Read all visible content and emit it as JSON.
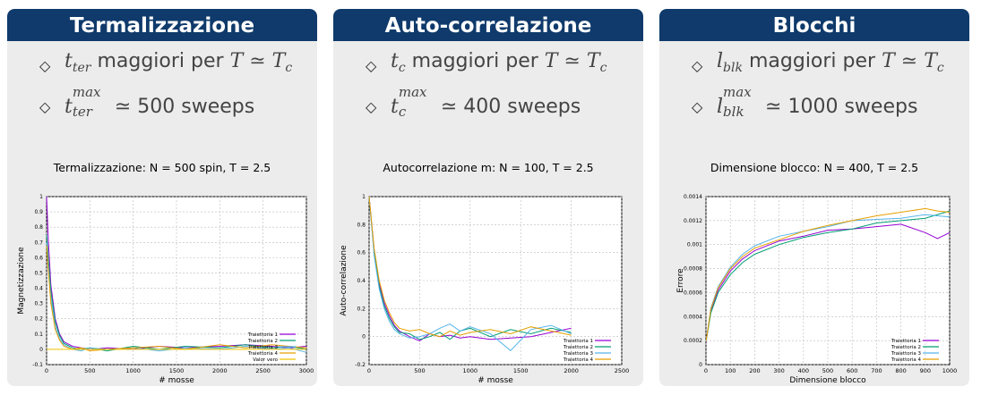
{
  "panels": [
    {
      "title": "Termalizzazione",
      "b1": {
        "sym": "t",
        "sub": "ter",
        "text": " maggiori per ",
        "rel": "T ≃ T",
        "relsub": "c"
      },
      "b2": {
        "sym": "t",
        "sup": "max",
        "sub": "ter",
        "rel": " ≃ ",
        "text": "500 sweeps"
      },
      "chart_data": {
        "type": "line",
        "title": "Termalizzazione: N = 500 spin, T = 2.5",
        "xlabel": "# mosse",
        "ylabel": "Magnetizzazione",
        "xlim": [
          0,
          3000
        ],
        "ylim": [
          -0.1,
          1
        ],
        "xticks": [
          "0",
          "500",
          "1000",
          "1500",
          "2000",
          "2500",
          "3000"
        ],
        "yticks": [
          "-0.1",
          "0",
          "0.1",
          "0.2",
          "0.3",
          "0.4",
          "0.5",
          "0.6",
          "0.7",
          "0.8",
          "0.9",
          "1"
        ],
        "grid": true,
        "legend_position": "bottom-right",
        "series": [
          {
            "name": "Traiettoria 1",
            "color": "#9400d3",
            "x": [
              0,
              20,
              50,
              100,
              150,
              200,
              300,
              400,
              500,
              700,
              1000,
              1300,
              1600,
              2000,
              2300,
              2600,
              2800,
              3000
            ],
            "y": [
              1,
              0.72,
              0.42,
              0.2,
              0.1,
              0.05,
              0.02,
              0.01,
              0.0,
              0.01,
              0.0,
              0.02,
              0.01,
              0.02,
              0.03,
              0.02,
              0.01,
              0.02
            ]
          },
          {
            "name": "Traiettoria 2",
            "color": "#009e73",
            "x": [
              0,
              20,
              50,
              100,
              150,
              200,
              300,
              400,
              500,
              700,
              1000,
              1300,
              1600,
              2000,
              2300,
              2600,
              2800,
              3000
            ],
            "y": [
              0.75,
              0.6,
              0.38,
              0.18,
              0.09,
              0.04,
              0.01,
              0.0,
              0.01,
              -0.01,
              0.02,
              0.0,
              0.02,
              0.01,
              0.03,
              0.01,
              0.02,
              0.0
            ]
          },
          {
            "name": "Traiettoria 3",
            "color": "#56b4e9",
            "x": [
              0,
              20,
              50,
              100,
              150,
              200,
              300,
              400,
              500,
              700,
              1000,
              1300,
              1600,
              2000,
              2300,
              2600,
              2800,
              3000
            ],
            "y": [
              0.7,
              0.55,
              0.33,
              0.15,
              0.07,
              0.03,
              0.0,
              -0.01,
              0.01,
              0.0,
              0.01,
              -0.01,
              0.01,
              0.0,
              0.02,
              0.0,
              0.01,
              -0.02
            ]
          },
          {
            "name": "Traiettoria 4",
            "color": "#e69f00",
            "x": [
              0,
              20,
              50,
              100,
              150,
              200,
              300,
              400,
              500,
              700,
              1000,
              1300,
              1600,
              2000,
              2300,
              2600,
              2800,
              3000
            ],
            "y": [
              0.68,
              0.52,
              0.3,
              0.13,
              0.06,
              0.02,
              0.0,
              0.01,
              -0.01,
              0.0,
              0.01,
              0.02,
              0.0,
              0.03,
              0.01,
              0.03,
              0.02,
              0.01
            ]
          },
          {
            "name": "Valor vero",
            "color": "#f0c400",
            "x": [
              0,
              3000
            ],
            "y": [
              0,
              0
            ]
          }
        ]
      }
    },
    {
      "title": "Auto-correlazione",
      "b1": {
        "sym": "t",
        "sub": "c",
        "text": " maggiori per ",
        "rel": "T ≃ T",
        "relsub": "c"
      },
      "b2": {
        "sym": "t",
        "sup": "max",
        "sub": "c",
        "rel": " ≃ ",
        "text": "400 sweeps"
      },
      "chart_data": {
        "type": "line",
        "title": "Autocorrelazione m: N = 100, T = 2.5",
        "xlabel": "# mosse",
        "ylabel": "Auto-correlazione",
        "xlim": [
          0,
          2500
        ],
        "ylim": [
          -0.2,
          1
        ],
        "xticks": [
          "0",
          "500",
          "1000",
          "1500",
          "2000",
          "2500"
        ],
        "yticks": [
          "-0.2",
          "0",
          "0.2",
          "0.4",
          "0.6",
          "0.8",
          "1"
        ],
        "grid": true,
        "legend_position": "bottom-right",
        "series": [
          {
            "name": "Traiettoria 1",
            "color": "#9400d3",
            "x": [
              0,
              50,
              100,
              150,
              200,
              250,
              300,
              400,
              500,
              600,
              700,
              800,
              900,
              1000,
              1200,
              1400,
              1600,
              1800,
              2000
            ],
            "y": [
              1,
              0.62,
              0.38,
              0.24,
              0.15,
              0.08,
              0.04,
              0.0,
              -0.03,
              0.02,
              0.0,
              0.01,
              -0.01,
              0.0,
              -0.02,
              -0.01,
              0.0,
              0.03,
              0.06
            ]
          },
          {
            "name": "Traiettoria 2",
            "color": "#009e73",
            "x": [
              0,
              50,
              100,
              150,
              200,
              250,
              300,
              400,
              500,
              600,
              700,
              800,
              900,
              1000,
              1200,
              1400,
              1600,
              1800,
              2000
            ],
            "y": [
              1,
              0.6,
              0.36,
              0.22,
              0.13,
              0.07,
              0.03,
              0.02,
              -0.02,
              0.0,
              0.03,
              -0.02,
              0.04,
              0.06,
              0.0,
              0.05,
              0.02,
              0.06,
              0.03
            ]
          },
          {
            "name": "Traiettoria 3",
            "color": "#56b4e9",
            "x": [
              0,
              50,
              100,
              150,
              200,
              250,
              300,
              400,
              500,
              600,
              700,
              800,
              900,
              1000,
              1200,
              1400,
              1600,
              1800,
              2000
            ],
            "y": [
              1,
              0.58,
              0.34,
              0.2,
              0.11,
              0.05,
              0.02,
              -0.01,
              0.0,
              0.02,
              0.06,
              0.09,
              0.04,
              0.07,
              0.02,
              -0.1,
              0.05,
              0.08,
              0.02
            ]
          },
          {
            "name": "Traiettoria 4",
            "color": "#e69f00",
            "x": [
              0,
              50,
              100,
              150,
              200,
              250,
              300,
              400,
              500,
              600,
              700,
              800,
              900,
              1000,
              1200,
              1400,
              1600,
              1800,
              2000
            ],
            "y": [
              1,
              0.63,
              0.4,
              0.26,
              0.17,
              0.1,
              0.06,
              0.04,
              0.05,
              0.02,
              0.0,
              0.04,
              0.01,
              0.03,
              0.05,
              0.02,
              0.07,
              0.04,
              0.01
            ]
          }
        ]
      }
    },
    {
      "title": "Blocchi",
      "b1": {
        "sym": "l",
        "sub": "blk",
        "text": " maggiori per ",
        "rel": "T ≃ T",
        "relsub": "c"
      },
      "b2": {
        "sym": "l",
        "sup": "max",
        "sub": "blk",
        "rel": " ≃ ",
        "text": "1000 sweeps"
      },
      "chart_data": {
        "type": "line",
        "title": "Dimensione blocco: N = 400, T = 2.5",
        "xlabel": "Dimensione blocco",
        "ylabel": "Errore",
        "xlim": [
          0,
          1000
        ],
        "ylim": [
          0,
          0.0014
        ],
        "xticks": [
          "0",
          "100",
          "200",
          "300",
          "400",
          "500",
          "600",
          "700",
          "800",
          "900",
          "1000"
        ],
        "yticks": [
          "0",
          "0.0002",
          "0.0004",
          "0.0006",
          "0.0008",
          "0.001",
          "0.0012",
          "0.0014"
        ],
        "grid": true,
        "legend_position": "bottom-right",
        "series": [
          {
            "name": "Traiettoria 1",
            "color": "#9400d3",
            "x": [
              1,
              20,
              50,
              100,
              150,
              200,
              300,
              400,
              500,
              600,
              700,
              800,
              900,
              950,
              1000
            ],
            "y": [
              0.0002,
              0.00045,
              0.00062,
              0.00078,
              0.00088,
              0.00095,
              0.00103,
              0.00107,
              0.00112,
              0.00113,
              0.00115,
              0.00117,
              0.0011,
              0.00105,
              0.0011
            ]
          },
          {
            "name": "Traiettoria 2",
            "color": "#009e73",
            "x": [
              1,
              20,
              50,
              100,
              150,
              200,
              300,
              400,
              500,
              600,
              700,
              800,
              900,
              950,
              1000
            ],
            "y": [
              0.0002,
              0.00043,
              0.0006,
              0.00075,
              0.00085,
              0.00092,
              0.001,
              0.00106,
              0.0011,
              0.00113,
              0.00118,
              0.0012,
              0.00122,
              0.00125,
              0.00128
            ]
          },
          {
            "name": "Traiettoria 3",
            "color": "#56b4e9",
            "x": [
              1,
              20,
              50,
              100,
              150,
              200,
              300,
              400,
              500,
              600,
              700,
              800,
              900,
              950,
              1000
            ],
            "y": [
              0.0002,
              0.00047,
              0.00065,
              0.00081,
              0.00092,
              0.00099,
              0.00107,
              0.00111,
              0.00115,
              0.0012,
              0.00121,
              0.00122,
              0.00125,
              0.00124,
              0.00123
            ]
          },
          {
            "name": "Traiettoria 4",
            "color": "#e69f00",
            "x": [
              1,
              20,
              50,
              100,
              150,
              200,
              300,
              400,
              500,
              600,
              700,
              800,
              900,
              950,
              1000
            ],
            "y": [
              0.0002,
              0.00046,
              0.00064,
              0.0008,
              0.0009,
              0.00097,
              0.00104,
              0.00111,
              0.00116,
              0.0012,
              0.00124,
              0.00127,
              0.0013,
              0.00128,
              0.00127
            ]
          }
        ]
      }
    }
  ]
}
